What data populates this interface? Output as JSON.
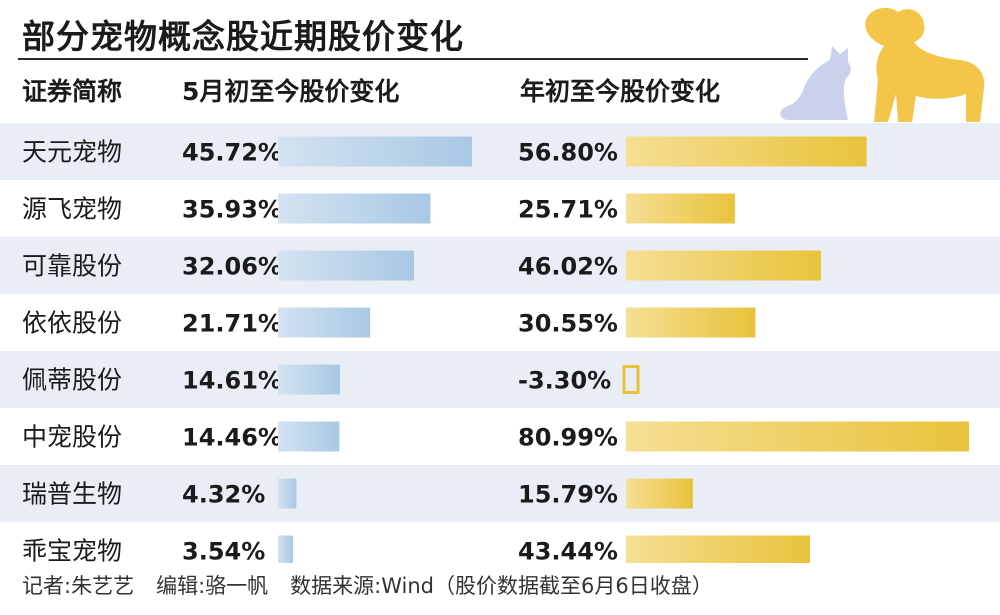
{
  "title": "部分宠物概念股近期股价变化",
  "headers": {
    "name": "证券简称",
    "col1": "5月初至今股价变化",
    "col2": "年初至今股价变化"
  },
  "colors": {
    "row_shade": "#e9eef6",
    "blue_bar_light": "#d3e3f1",
    "blue_bar_dark": "#a8c8e4",
    "gold_bar_light": "#f5df94",
    "gold_bar_dark": "#e8c33a",
    "dog": "#f3c64a",
    "cat": "#c9d2ea"
  },
  "chart_data": {
    "type": "bar",
    "categories": [
      "天元宠物",
      "源飞宠物",
      "可靠股份",
      "依依股份",
      "佩蒂股份",
      "中宠股份",
      "瑞普生物",
      "乖宝宠物"
    ],
    "series": [
      {
        "name": "5月初至今股价变化",
        "values": [
          45.72,
          35.93,
          32.06,
          21.71,
          14.61,
          14.46,
          4.32,
          3.54
        ],
        "labels": [
          "45.72%",
          "35.93%",
          "32.06%",
          "21.71%",
          "14.61%",
          "14.46%",
          "4.32%",
          "3.54%"
        ]
      },
      {
        "name": "年初至今股价变化",
        "values": [
          56.8,
          25.71,
          46.02,
          30.55,
          -3.3,
          80.99,
          15.79,
          43.44
        ],
        "labels": [
          "56.80%",
          "25.71%",
          "46.02%",
          "30.55%",
          "-3.30%",
          "80.99%",
          "15.79%",
          "43.44%"
        ]
      }
    ],
    "unit": "%"
  },
  "footer": {
    "reporter": "记者:朱艺艺",
    "editor": "编辑:骆一帆",
    "source": "数据来源:Wind（股价数据截至6月6日收盘）"
  }
}
